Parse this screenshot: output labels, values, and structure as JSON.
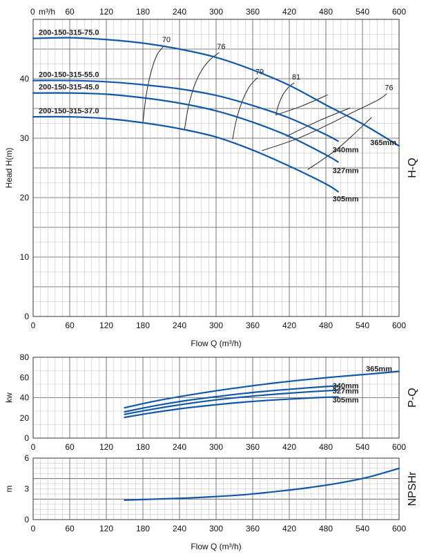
{
  "chart_data": [
    {
      "type": "line",
      "panel": "H-Q",
      "panel_label": "H-Q",
      "title": "",
      "xlabel": "Flow Q (m³/h)",
      "ylabel": "Head H(m)",
      "top_axis_unit": "m³/h",
      "xlim": [
        0,
        600
      ],
      "ylim": [
        0,
        50
      ],
      "xticks": [
        0,
        60,
        120,
        180,
        240,
        300,
        360,
        420,
        480,
        540,
        600
      ],
      "yticks": [
        0,
        10,
        20,
        30,
        40
      ],
      "series": [
        {
          "name": "200-150-315-75.0",
          "diameter": "365mm",
          "x": [
            0,
            60,
            120,
            180,
            240,
            300,
            360,
            420,
            480,
            540,
            600
          ],
          "y": [
            46.8,
            46.9,
            46.6,
            46.0,
            45.0,
            43.6,
            41.5,
            38.9,
            35.6,
            32.4,
            28.7
          ]
        },
        {
          "name": "200-150-315-55.0",
          "diameter": "340mm",
          "x": [
            0,
            60,
            120,
            180,
            240,
            300,
            360,
            420,
            480,
            500
          ],
          "y": [
            39.7,
            39.7,
            39.5,
            39.0,
            38.3,
            37.2,
            35.5,
            33.4,
            30.6,
            29.5
          ]
        },
        {
          "name": "200-150-315-45.0",
          "diameter": "327mm",
          "x": [
            0,
            60,
            120,
            180,
            240,
            300,
            360,
            420,
            480,
            500
          ],
          "y": [
            37.6,
            37.6,
            37.4,
            36.8,
            35.9,
            34.6,
            32.7,
            30.3,
            27.2,
            26.0
          ]
        },
        {
          "name": "200-150-315-37.0",
          "diameter": "305mm",
          "x": [
            0,
            60,
            120,
            180,
            240,
            300,
            360,
            420,
            480,
            500
          ],
          "y": [
            33.6,
            33.6,
            33.3,
            32.6,
            31.6,
            30.2,
            28.0,
            25.3,
            22.3,
            21.0
          ]
        }
      ],
      "efficiency_curves": [
        {
          "label": "70",
          "x": [
            180,
            185,
            193,
            203,
            215
          ],
          "y": [
            32.6,
            37.0,
            41.0,
            44.0,
            45.6
          ]
        },
        {
          "label": "76",
          "x": [
            248,
            255,
            265,
            278,
            292,
            305
          ],
          "y": [
            31.4,
            35.5,
            39.0,
            41.7,
            43.4,
            44.4
          ]
        },
        {
          "label": "79",
          "x": [
            327,
            333,
            342,
            354,
            368
          ],
          "y": [
            29.8,
            33.0,
            36.0,
            38.6,
            40.2
          ]
        },
        {
          "label": "81",
          "x": [
            398,
            402,
            410,
            420,
            428
          ],
          "y": [
            33.9,
            35.5,
            37.4,
            38.7,
            39.3
          ]
        },
        {
          "label": "76",
          "x": [
            375,
            430,
            480,
            525,
            565,
            580
          ],
          "y": [
            27.9,
            29.8,
            32.1,
            34.4,
            36.4,
            37.5
          ]
        }
      ],
      "efficiency_links": [
        {
          "x": [
            398,
            440,
            483
          ],
          "y": [
            33.9,
            35.4,
            37.3
          ]
        },
        {
          "x": [
            415,
            470,
            520
          ],
          "y": [
            30.3,
            33.0,
            35.1
          ]
        },
        {
          "x": [
            450,
            500,
            555
          ],
          "y": [
            24.7,
            28.3,
            33.5
          ]
        }
      ]
    },
    {
      "type": "line",
      "panel": "P-Q",
      "panel_label": "P-Q",
      "xlabel": "",
      "ylabel": "kw",
      "xlim": [
        0,
        600
      ],
      "ylim": [
        0,
        80
      ],
      "xticks": [
        0,
        60,
        120,
        180,
        240,
        300,
        360,
        420,
        480,
        540,
        600
      ],
      "yticks": [
        0,
        20,
        40,
        60,
        80
      ],
      "series": [
        {
          "name": "365mm",
          "x": [
            150,
            200,
            250,
            300,
            350,
            400,
            450,
            500,
            550,
            600
          ],
          "y": [
            30.0,
            36.6,
            42.0,
            46.8,
            51.0,
            54.8,
            58.0,
            60.8,
            63.3,
            66.0
          ]
        },
        {
          "name": "340mm",
          "x": [
            150,
            200,
            250,
            300,
            350,
            400,
            450,
            500
          ],
          "y": [
            26.0,
            32.0,
            37.0,
            41.0,
            44.5,
            47.3,
            49.7,
            51.8
          ]
        },
        {
          "name": "327mm",
          "x": [
            150,
            200,
            250,
            300,
            350,
            400,
            450,
            500
          ],
          "y": [
            23.5,
            29.0,
            33.8,
            37.8,
            41.0,
            43.6,
            45.7,
            47.4
          ]
        },
        {
          "name": "305mm",
          "x": [
            150,
            200,
            250,
            300,
            350,
            400,
            450,
            500
          ],
          "y": [
            20.5,
            25.5,
            29.7,
            33.0,
            35.8,
            37.9,
            39.6,
            40.8
          ]
        }
      ]
    },
    {
      "type": "line",
      "panel": "NPSHr",
      "panel_label": "NPSHr",
      "xlabel": "Flow Q (m³/h)",
      "ylabel": "m",
      "xlim": [
        0,
        600
      ],
      "ylim": [
        0,
        6
      ],
      "xticks": [
        0,
        60,
        120,
        180,
        240,
        300,
        360,
        420,
        480,
        540,
        600
      ],
      "yticks": [
        0,
        3,
        6
      ],
      "series": [
        {
          "name": "NPSHr",
          "x": [
            150,
            200,
            250,
            300,
            350,
            400,
            450,
            500,
            550,
            600
          ],
          "y": [
            1.9,
            2.0,
            2.1,
            2.25,
            2.45,
            2.75,
            3.1,
            3.55,
            4.15,
            5.0
          ]
        }
      ]
    }
  ]
}
